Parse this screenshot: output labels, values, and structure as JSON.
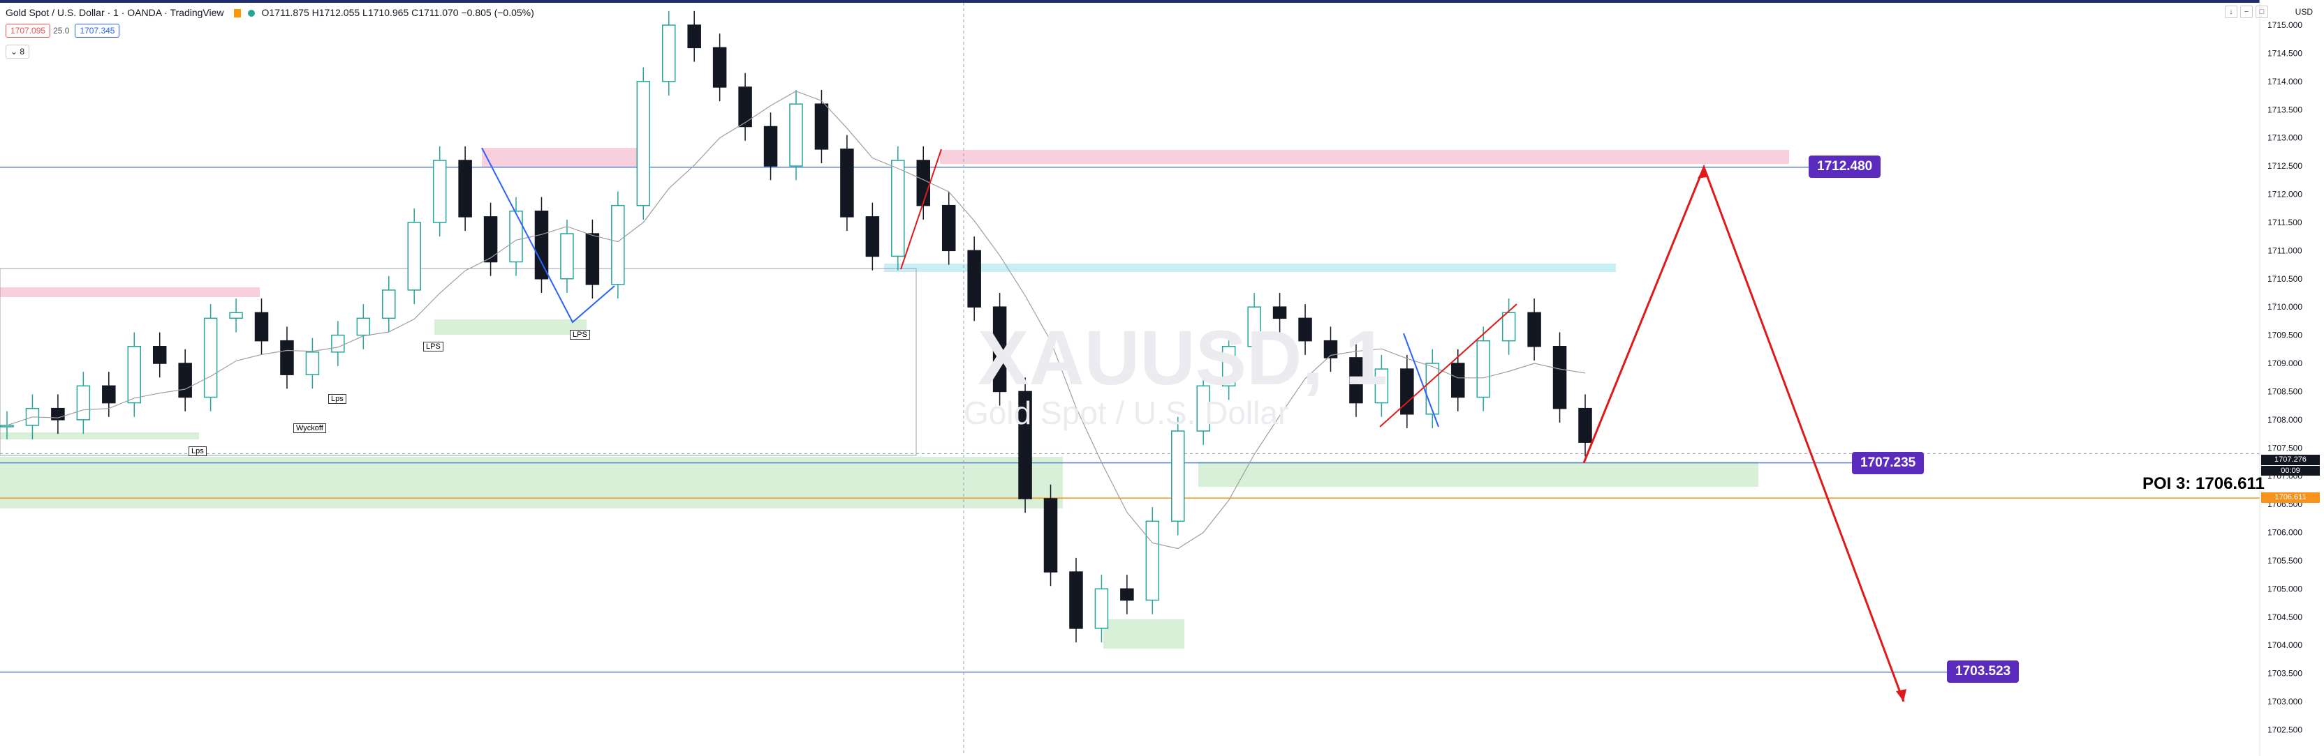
{
  "header": {
    "symbol": "Gold Spot / U.S. Dollar · 1 · OANDA · TradingView",
    "ohlc": "O1711.875 H1712.055 L1710.965 C1711.070 −0.805 (−0.05%)",
    "sell_price": "1707.095",
    "spread": "25.0",
    "buy_price": "1707.345",
    "indicator_count": "8",
    "currency": "USD"
  },
  "watermark": {
    "symbol": "XAUUSD, 1",
    "name": "Gold Spot / U.S. Dollar"
  },
  "annotations": {
    "level_high": "1712.480",
    "level_mid": "1707.235",
    "level_low": "1703.523",
    "poi_label": "POI 3: 1706.611",
    "current_price": "1707.276",
    "countdown": "00:09",
    "poi_price": "1706.611",
    "lps_1": "LPS",
    "lps_2": "LPS",
    "lps_3": "Lps",
    "lps_4": "Lps",
    "wyckoff": "Wyckoff"
  },
  "colors": {
    "up": "#26a69a",
    "down": "#131722",
    "label_bg": "#5b2bbd",
    "arrow": "#e0191b",
    "supply_zone": "#f8cfdc",
    "demand_zone": "#d8efd8",
    "cyan_zone": "#c9eef5"
  },
  "chart_data": {
    "type": "line",
    "title": "Gold Spot / U.S. Dollar",
    "xlabel": "",
    "ylabel": "",
    "ylim": [
      1702.5,
      1715.3
    ],
    "ytick_labels": [
      "1715.000",
      "1714.500",
      "1714.000",
      "1713.500",
      "1713.000",
      "1712.500",
      "1712.000",
      "1711.500",
      "1711.000",
      "1710.500",
      "1710.000",
      "1709.500",
      "1709.000",
      "1708.500",
      "1708.000",
      "1707.500",
      "1707.000",
      "1706.500",
      "1706.000",
      "1705.500",
      "1705.000",
      "1704.500",
      "1704.000",
      "1703.500",
      "1703.000",
      "1702.500"
    ],
    "series": [
      {
        "name": "",
        "values": [
          1707.9,
          1708.2,
          1708.0,
          1708.6,
          1708.3,
          1709.3,
          1709.0,
          1708.4,
          1709.8,
          1709.9,
          1709.4,
          1708.8,
          1709.2,
          1709.5,
          1709.8,
          1710.3,
          1711.5,
          1712.6,
          1711.6,
          1710.8,
          1711.7,
          1710.5,
          1711.3,
          1710.4,
          1711.8,
          1714.0,
          1715.0,
          1714.6,
          1713.9,
          1713.2,
          1712.5,
          1713.6,
          1712.8,
          1711.6,
          1710.9,
          1712.6,
          1711.8,
          1711.0,
          1710.0,
          1708.5,
          1706.6,
          1705.3,
          1704.3,
          1705.0,
          1704.8,
          1706.2,
          1707.8,
          1708.6,
          1709.3,
          1710.0,
          1709.8,
          1709.4,
          1709.1,
          1708.3,
          1708.9,
          1708.1,
          1709.0,
          1708.4,
          1709.4,
          1709.9,
          1709.3,
          1708.2,
          1707.6
        ]
      }
    ],
    "horizontal_levels": [
      1712.48,
      1707.235,
      1706.611,
      1703.523
    ],
    "projection": [
      {
        "label": "current",
        "y": 1707.235
      },
      {
        "label": "target_high",
        "y": 1712.48
      },
      {
        "label": "target_low",
        "y": 1703.0
      }
    ]
  }
}
